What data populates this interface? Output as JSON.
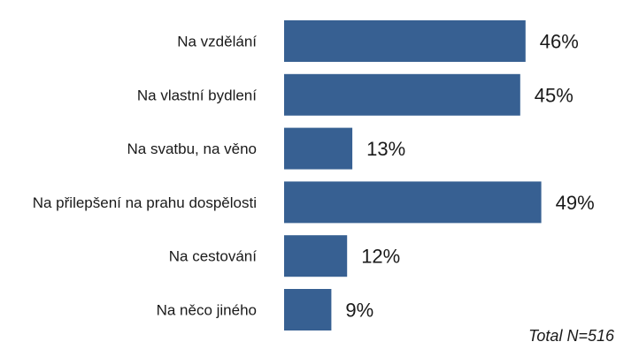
{
  "chart_data": {
    "type": "bar",
    "orientation": "horizontal",
    "categories": [
      "Na vzdělání",
      "Na vlastní bydlení",
      "Na svatbu, na věno",
      "Na přilepšení na prahu dospělosti",
      "Na cestování",
      "Na něco jiného"
    ],
    "values": [
      46,
      45,
      13,
      49,
      12,
      9
    ],
    "value_labels": [
      "46%",
      "45%",
      "13%",
      "49%",
      "12%",
      "9%"
    ],
    "unit": "%",
    "xlim": [
      0,
      100
    ],
    "grid": false,
    "legend": "none",
    "bar_color": "#376092",
    "note": "Total N=516"
  }
}
